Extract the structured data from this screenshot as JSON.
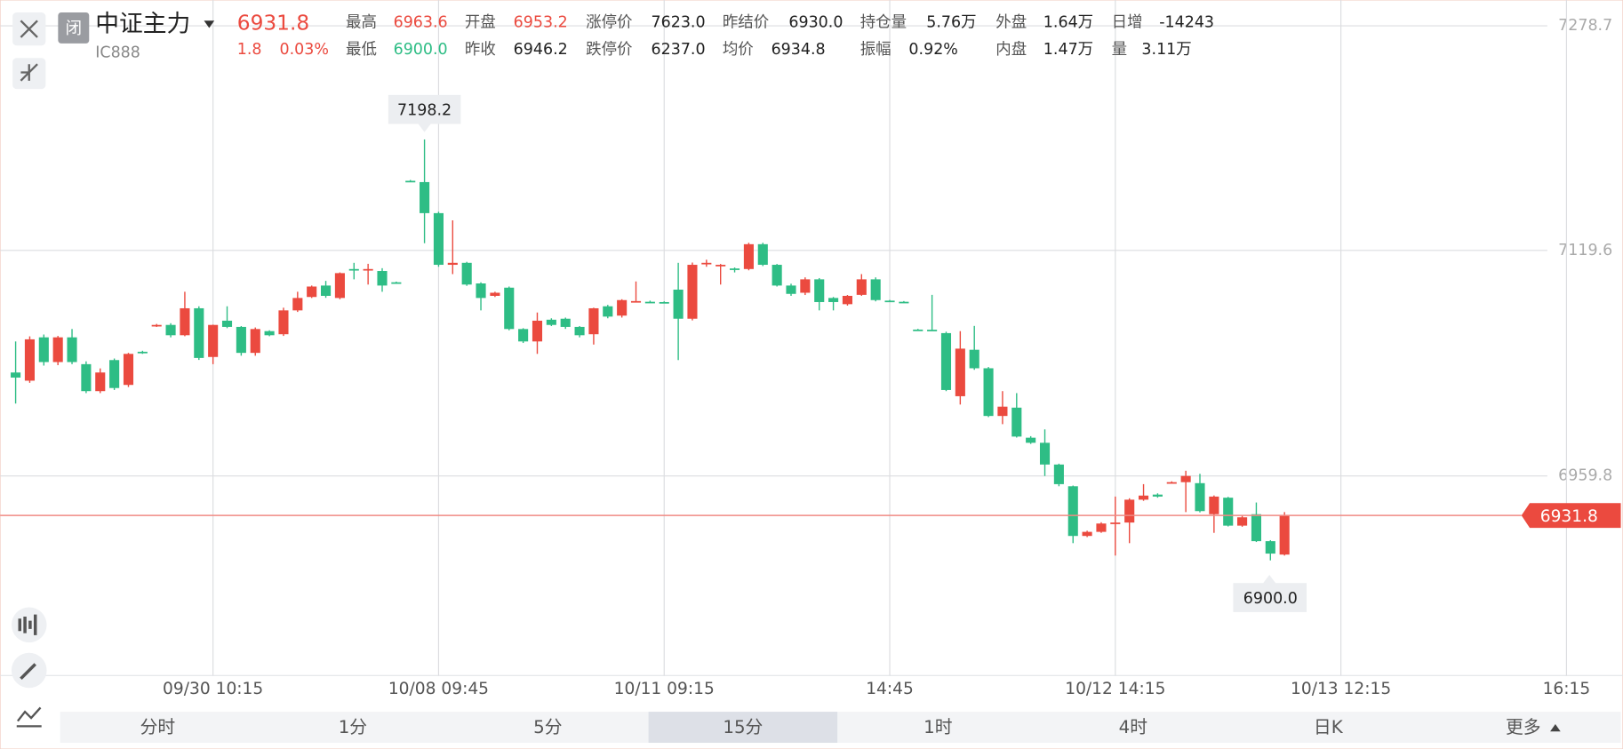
{
  "header": {
    "badge": "闭",
    "name": "中证主力",
    "code": "IC888",
    "price": "6931.8",
    "change": "1.8",
    "change_pct": "0.03%",
    "stats": [
      [
        {
          "label": "最高",
          "value": "6963.6"
        },
        {
          "label": "开盘",
          "value": "6953.2"
        },
        {
          "label": "涨停价",
          "value": "7623.0"
        },
        {
          "label": "昨结价",
          "value": "6930.0"
        },
        {
          "label": "持仓量",
          "value": "5.76万"
        },
        {
          "label": "外盘",
          "value": "1.64万"
        },
        {
          "label": "日增",
          "value": "-14243"
        }
      ],
      [
        {
          "label": "最低",
          "value": "6900.0"
        },
        {
          "label": "昨收",
          "value": "6946.2"
        },
        {
          "label": "跌停价",
          "value": "6237.0"
        },
        {
          "label": "均价",
          "value": "6934.8"
        },
        {
          "label": "振幅",
          "value": "0.92%"
        },
        {
          "label": "内盘",
          "value": "1.47万"
        },
        {
          "label": "量",
          "value": "3.11万"
        }
      ]
    ]
  },
  "tabs": {
    "items": [
      "分时",
      "1分",
      "5分",
      "15分",
      "1时",
      "4时",
      "日K",
      "更多"
    ],
    "active_tab": "15分"
  },
  "chart_data": {
    "type": "candlestick",
    "up_color": "#eb4a3f",
    "down_color": "#2ebd85",
    "grid": true,
    "x": [
      0,
      1,
      2,
      3,
      4,
      5,
      6,
      7,
      8,
      9,
      10,
      11,
      12,
      13,
      14,
      15,
      16,
      17,
      18,
      19,
      20,
      21,
      22,
      23,
      24,
      25,
      26,
      27,
      28,
      29,
      30,
      31,
      32,
      33,
      34,
      35,
      36,
      37,
      38,
      39,
      40,
      41,
      42,
      43,
      44,
      45,
      46,
      47,
      48,
      49,
      50,
      51,
      52,
      53,
      54,
      55,
      56,
      57,
      58,
      59,
      60,
      61,
      62,
      63,
      64,
      65,
      66,
      67,
      68,
      69,
      70,
      71,
      72,
      73,
      74,
      75,
      76,
      77,
      78,
      79,
      80,
      81,
      82,
      83,
      84,
      85,
      86,
      87,
      88,
      89,
      90
    ],
    "open": [
      7033.1,
      7027.3,
      7058,
      7040.5,
      7058,
      7039,
      7019.9,
      7041.9,
      7024.3,
      7047.8,
      7066.1,
      7066.8,
      7059.5,
      7078.6,
      7044.1,
      7069.8,
      7065.4,
      7047,
      7062.4,
      7060.2,
      7077.1,
      7086.6,
      7094.7,
      7085.9,
      7106.4,
      7105.8,
      7105,
      7097,
      7168.9,
      7168,
      7146,
      7109.4,
      7110.8,
      7096.2,
      7087.4,
      7093.2,
      7063.9,
      7055.1,
      7070.5,
      7071.2,
      7065.4,
      7060.2,
      7080,
      7073.4,
      7083.5,
      7083.2,
      7083,
      7091.8,
      7071.2,
      7110.5,
      7109,
      7106.8,
      7106.4,
      7124,
      7109.4,
      7094.7,
      7089.6,
      7099.1,
      7085.9,
      7081.5,
      7088.1,
      7099.1,
      7084,
      7083.2,
      7063.5,
      7063.4,
      7061,
      7016.3,
      7049.2,
      7036.1,
      7002.3,
      7008.2,
      6986.9,
      6983.3,
      6967.9,
      6952.5,
      6917.3,
      6920.2,
      6926.5,
      6926.8,
      6943,
      6946.6,
      6955,
      6955.4,
      6954.7,
      6932.7,
      6944.4,
      6924.6,
      6932.7,
      6913.6,
      6904.1
    ],
    "high": [
      7055.1,
      7058.7,
      7060,
      7059,
      7063.9,
      7041,
      7036,
      7043,
      7047,
      7048.5,
      7067.5,
      7068,
      7090.3,
      7080,
      7067,
      7080,
      7066,
      7065,
      7063,
      7079,
      7090.3,
      7094.7,
      7098,
      7104,
      7110.8,
      7110.1,
      7107,
      7097.5,
      7169.5,
      7198.2,
      7147,
      7140.9,
      7111.5,
      7097,
      7090.3,
      7094,
      7064.5,
      7075.6,
      7071.5,
      7072,
      7066,
      7079,
      7081,
      7085,
      7097.6,
      7084,
      7083.5,
      7110.8,
      7111,
      7113,
      7110,
      7107.5,
      7125,
      7125,
      7110,
      7096,
      7100.5,
      7100,
      7086.6,
      7088,
      7102.8,
      7100.5,
      7084.5,
      7083.7,
      7064,
      7088.1,
      7062,
      7062.4,
      7066.1,
      7037,
      7019.9,
      7018.5,
      6988,
      6992.8,
      6968.5,
      6953,
      6921,
      6927,
      6945.2,
      6944,
      6954,
      6947.5,
      6956,
      6963.5,
      6961.3,
      6946,
      6945,
      6932,
      6941,
      6914.3,
      6934.2
    ],
    "low": [
      7011.1,
      7025.8,
      7038,
      7038.3,
      7039,
      7018.5,
      7018.5,
      7020.7,
      7022.8,
      7046.3,
      7065.4,
      7058,
      7058.8,
      7042,
      7039,
      7064.5,
      7045,
      7045,
      7058.8,
      7059,
      7076,
      7085.9,
      7086,
      7085,
      7099.1,
      7095.4,
      7090.3,
      7096,
      7168,
      7124.7,
      7108,
      7102.8,
      7094.5,
      7077.1,
      7086.6,
      7063,
      7054,
      7046.3,
      7066,
      7064,
      7058,
      7052.9,
      7071.5,
      7072,
      7083,
      7082.5,
      7082.2,
      7041.9,
      7070,
      7108,
      7095.4,
      7104,
      7105.5,
      7108.5,
      7094,
      7087.4,
      7088,
      7077.1,
      7077.1,
      7080.5,
      7087.4,
      7083.5,
      7083,
      7082.3,
      7062.6,
      7062.6,
      7019.9,
      7010.4,
      7035,
      7001.5,
      6996.5,
      6987,
      6982.5,
      6959.8,
      6952.5,
      6912.2,
      6916.5,
      6919.5,
      6903.4,
      6912.2,
      6942.2,
      6944.4,
      6954.7,
      6934.2,
      6934,
      6919.5,
      6924,
      6923.8,
      6913,
      6900.0,
      6903.4
    ],
    "close": [
      7029.5,
      7056.6,
      7040.5,
      7058,
      7040.5,
      7019.9,
      7033.1,
      7022.1,
      7046.3,
      7047,
      7066.8,
      7059.5,
      7078.6,
      7043.4,
      7066.8,
      7065.4,
      7047,
      7063.9,
      7059.5,
      7077.1,
      7085.9,
      7094,
      7087.4,
      7103.5,
      7105.8,
      7106.4,
      7094.7,
      7096.2,
      7168.3,
      7146,
      7109.4,
      7110.8,
      7095.4,
      7085.9,
      7089.6,
      7063.9,
      7055.1,
      7069.8,
      7066.8,
      7065.4,
      7059.5,
      7078.6,
      7072.7,
      7084.4,
      7083.7,
      7083,
      7082.8,
      7071.2,
      7109.4,
      7110.8,
      7109.4,
      7106.1,
      7124,
      7109.4,
      7094.7,
      7088.8,
      7099.1,
      7083,
      7083,
      7087.4,
      7099.1,
      7084.4,
      7083.4,
      7082.8,
      7063,
      7062.8,
      7020.7,
      7050,
      7036.1,
      7002.3,
      7008.9,
      6987.7,
      6983.3,
      6967.9,
      6954,
      6917.3,
      6920.2,
      6926.1,
      6926.8,
      6943,
      6945.9,
      6945.2,
      6955.4,
      6959.8,
      6934.9,
      6945.2,
      6924.6,
      6930.5,
      6913.6,
      6904.8,
      6931.8
    ],
    "xlim": [
      -1.1,
      114
    ],
    "xticks": [
      {
        "value": 14,
        "label": "09/30 10:15"
      },
      {
        "value": 30,
        "label": "10/08 09:45"
      },
      {
        "value": 46,
        "label": "10/11 09:15"
      },
      {
        "value": 62,
        "label": "14:45"
      },
      {
        "value": 78,
        "label": "10/12 14:15"
      },
      {
        "value": 94,
        "label": "10/13 12:15"
      },
      {
        "value": 110,
        "label": "16:15"
      }
    ],
    "ylim": [
      6818.4,
      7297.0
    ],
    "yticks": [
      6959.8,
      7119.6,
      7278.7
    ],
    "annotations": [
      "7198.2",
      "6900.0"
    ]
  }
}
